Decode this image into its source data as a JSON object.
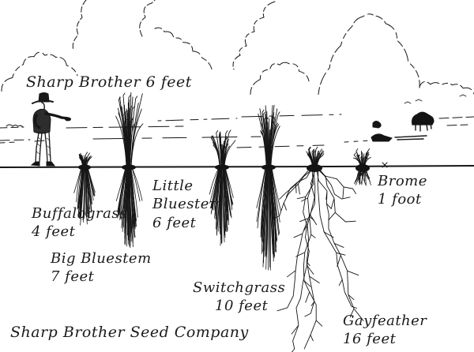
{
  "company": {
    "name_label": "Sharp Brother Seed Company"
  },
  "scale_figure": {
    "label": "Sharp Brother 6 feet"
  },
  "plants": [
    {
      "name": "Buffalograss",
      "depth_label": "4 feet"
    },
    {
      "name": "Big Bluestem",
      "depth_label": "7 feet"
    },
    {
      "name": "Little Bluestem",
      "depth_label": "6 feet"
    },
    {
      "name": "Switchgrass",
      "depth_label": "10 feet"
    },
    {
      "name": "Gayfeather",
      "depth_label": "16 feet"
    },
    {
      "name": "Brome",
      "depth_label": "1 foot"
    }
  ]
}
